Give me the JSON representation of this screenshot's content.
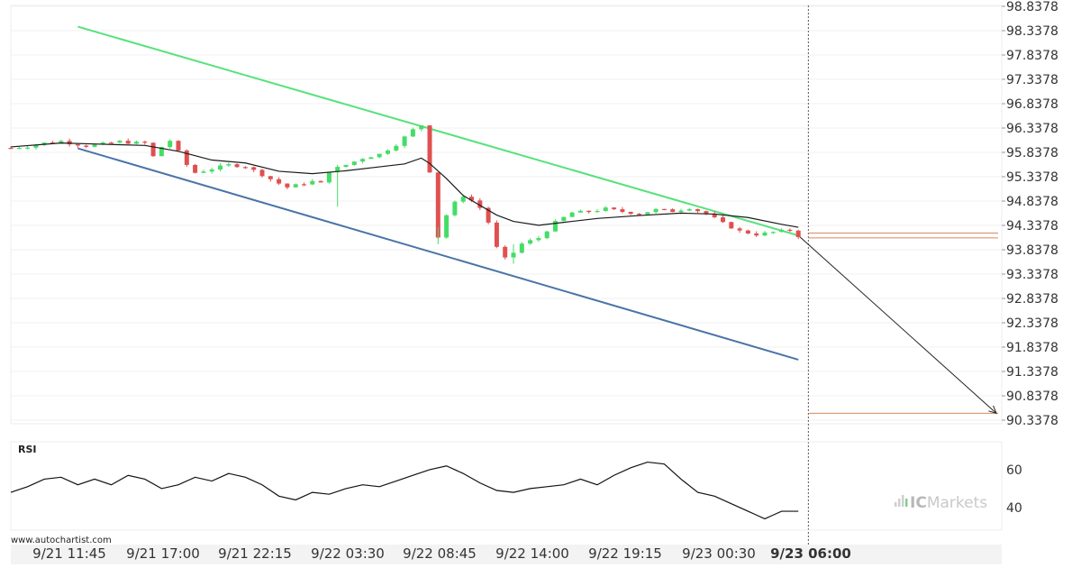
{
  "watermark": "www.autochartist.com",
  "brand": {
    "prefix": "IC",
    "name": "Markets"
  },
  "colors": {
    "resistance": "#55e27a",
    "support": "#4a74a8",
    "ma": "#1a1a1a",
    "bull": "#44dd66",
    "bear": "#e05050",
    "levels": "#d9895a",
    "forecast": "#222222"
  },
  "chart_data": {
    "type": "candlestick",
    "y_axis_ticks": [
      "98.8378",
      "98.3378",
      "97.8378",
      "97.3378",
      "96.8378",
      "96.3378",
      "95.8378",
      "95.3378",
      "94.8378",
      "94.3378",
      "93.8378",
      "93.3378",
      "92.8378",
      "92.3378",
      "91.8378",
      "91.3378",
      "90.8378",
      "90.3378"
    ],
    "x_axis_ticks": [
      {
        "label": "9/21 11:45"
      },
      {
        "label": "9/21 17:00"
      },
      {
        "label": "9/21 22:15"
      },
      {
        "label": "9/22 03:30"
      },
      {
        "label": "9/22 08:45"
      },
      {
        "label": "9/22 14:00"
      },
      {
        "label": "9/22 19:15"
      },
      {
        "label": "9/23 00:30"
      },
      {
        "label": "9/23 06:00",
        "bold": true
      }
    ],
    "ylim": [
      90.13,
      98.84
    ],
    "price_path": [
      [
        0,
        95.93
      ],
      [
        2,
        95.96
      ],
      [
        4,
        96.03
      ],
      [
        6,
        96.07
      ],
      [
        7,
        96.03
      ],
      [
        9,
        95.97
      ],
      [
        11,
        96.01
      ],
      [
        13,
        96.06
      ],
      [
        14,
        96.04
      ],
      [
        16,
        96.03
      ],
      [
        17,
        95.75
      ],
      [
        18,
        95.95
      ],
      [
        19,
        96.08
      ],
      [
        20,
        95.85
      ],
      [
        21,
        95.58
      ],
      [
        22,
        95.42
      ],
      [
        24,
        95.5
      ],
      [
        26,
        95.58
      ],
      [
        28,
        95.55
      ],
      [
        30,
        95.38
      ],
      [
        32,
        95.2
      ],
      [
        33,
        95.12
      ],
      [
        35,
        95.2
      ],
      [
        36,
        95.24
      ],
      [
        37,
        95.2
      ],
      [
        38,
        95.46
      ],
      [
        40,
        95.58
      ],
      [
        42,
        95.72
      ],
      [
        44,
        95.8
      ],
      [
        46,
        96.0
      ],
      [
        48,
        96.3
      ],
      [
        49,
        96.4
      ],
      [
        50,
        95.45
      ],
      [
        51,
        94.1
      ],
      [
        52,
        94.55
      ],
      [
        53,
        94.8
      ],
      [
        54,
        94.95
      ],
      [
        55,
        94.85
      ],
      [
        56,
        94.7
      ],
      [
        57,
        94.4
      ],
      [
        58,
        93.88
      ],
      [
        59,
        93.65
      ],
      [
        60,
        93.78
      ],
      [
        61,
        93.96
      ],
      [
        63,
        94.08
      ],
      [
        65,
        94.4
      ],
      [
        67,
        94.6
      ],
      [
        69,
        94.62
      ],
      [
        71,
        94.68
      ],
      [
        73,
        94.62
      ],
      [
        75,
        94.58
      ],
      [
        77,
        94.66
      ],
      [
        79,
        94.63
      ],
      [
        81,
        94.7
      ],
      [
        83,
        94.58
      ],
      [
        85,
        94.38
      ],
      [
        87,
        94.22
      ],
      [
        89,
        94.15
      ],
      [
        91,
        94.2
      ],
      [
        93,
        94.24
      ],
      [
        94,
        94.12
      ]
    ],
    "ma_path": [
      [
        0,
        95.95
      ],
      [
        6,
        96.03
      ],
      [
        10,
        96.01
      ],
      [
        16,
        95.98
      ],
      [
        20,
        95.86
      ],
      [
        24,
        95.68
      ],
      [
        28,
        95.62
      ],
      [
        32,
        95.45
      ],
      [
        36,
        95.4
      ],
      [
        40,
        95.46
      ],
      [
        44,
        95.54
      ],
      [
        47,
        95.6
      ],
      [
        49,
        95.72
      ],
      [
        50,
        95.61
      ],
      [
        52,
        95.3
      ],
      [
        54,
        94.95
      ],
      [
        56,
        94.75
      ],
      [
        58,
        94.55
      ],
      [
        60,
        94.42
      ],
      [
        63,
        94.34
      ],
      [
        66,
        94.4
      ],
      [
        70,
        94.48
      ],
      [
        75,
        94.54
      ],
      [
        80,
        94.59
      ],
      [
        84,
        94.57
      ],
      [
        88,
        94.5
      ],
      [
        92,
        94.36
      ],
      [
        94,
        94.3
      ]
    ],
    "resistance_line": {
      "from": [
        8,
        98.42
      ],
      "to": [
        94,
        94.13
      ]
    },
    "support_line": {
      "from": [
        8,
        95.92
      ],
      "to": [
        94,
        91.58
      ]
    },
    "forecast": {
      "from": [
        94,
        94.13
      ],
      "to": [
        116,
        90.48
      ]
    },
    "levels": [
      94.18,
      94.08,
      90.48
    ],
    "rsi": {
      "label": "RSI",
      "ticks": [
        "60",
        "40"
      ],
      "tick_values": [
        60,
        40
      ],
      "ylim": [
        28,
        70
      ],
      "path": [
        [
          0,
          48
        ],
        [
          2,
          51
        ],
        [
          4,
          55
        ],
        [
          6,
          56
        ],
        [
          8,
          52
        ],
        [
          10,
          55
        ],
        [
          12,
          52
        ],
        [
          14,
          57
        ],
        [
          16,
          55
        ],
        [
          18,
          50
        ],
        [
          20,
          52
        ],
        [
          22,
          56
        ],
        [
          24,
          54
        ],
        [
          26,
          58
        ],
        [
          28,
          56
        ],
        [
          30,
          52
        ],
        [
          32,
          46
        ],
        [
          34,
          44
        ],
        [
          36,
          48
        ],
        [
          38,
          47
        ],
        [
          40,
          50
        ],
        [
          42,
          52
        ],
        [
          44,
          51
        ],
        [
          46,
          54
        ],
        [
          48,
          57
        ],
        [
          50,
          60
        ],
        [
          52,
          62
        ],
        [
          54,
          58
        ],
        [
          56,
          53
        ],
        [
          58,
          49
        ],
        [
          60,
          48
        ],
        [
          62,
          50
        ],
        [
          64,
          51
        ],
        [
          66,
          52
        ],
        [
          68,
          55
        ],
        [
          70,
          52
        ],
        [
          72,
          57
        ],
        [
          74,
          61
        ],
        [
          76,
          64
        ],
        [
          78,
          63
        ],
        [
          80,
          55
        ],
        [
          82,
          48
        ],
        [
          84,
          46
        ],
        [
          86,
          42
        ],
        [
          88,
          38
        ],
        [
          89,
          36
        ],
        [
          90,
          34
        ],
        [
          91,
          36
        ],
        [
          92,
          38
        ],
        [
          94,
          38
        ]
      ]
    }
  }
}
